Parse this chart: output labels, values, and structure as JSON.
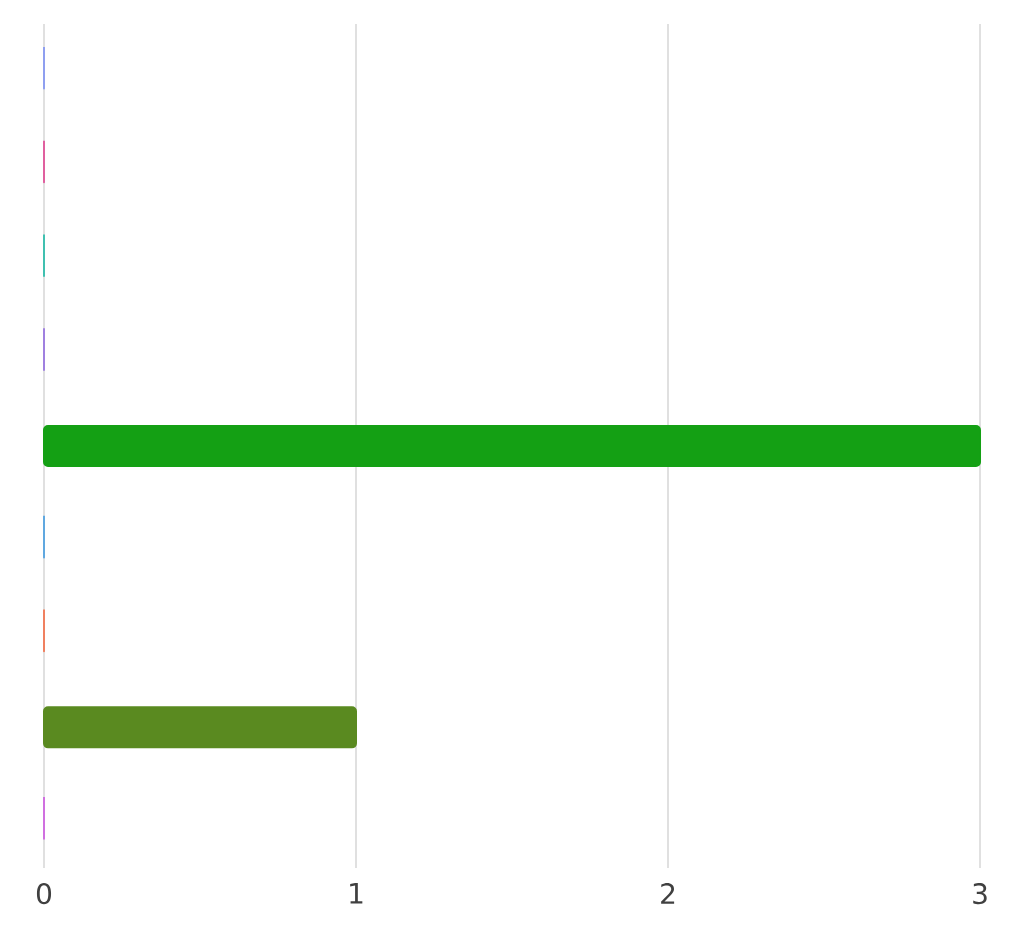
{
  "chart_data": {
    "type": "bar",
    "orientation": "horizontal",
    "categories": [
      null,
      null,
      null,
      null,
      null,
      null,
      null,
      null,
      null
    ],
    "values": [
      0,
      0,
      0,
      0,
      3,
      0,
      0,
      1,
      0
    ],
    "colors": [
      "#8f9ff0",
      "#e0609f",
      "#40c0b0",
      "#a080e0",
      "#14a014",
      "#60a8e0",
      "#f08060",
      "#5a8a20",
      "#d070e0"
    ],
    "xlim": [
      0,
      3
    ],
    "xticks": [
      0,
      1,
      2,
      3
    ],
    "grid": "x"
  }
}
